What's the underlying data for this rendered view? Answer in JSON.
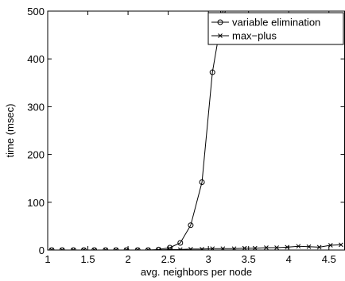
{
  "chart_data": {
    "type": "line",
    "title": "",
    "xlabel": "avg. neighbors per node",
    "ylabel": "time (msec)",
    "xlim": [
      1,
      4.7
    ],
    "ylim": [
      0,
      500
    ],
    "x_ticks": [
      1,
      1.5,
      2,
      2.5,
      3,
      3.5,
      4,
      4.5
    ],
    "x_tick_labels": [
      "1",
      "1.5",
      "2",
      "2.5",
      "3",
      "3.5",
      "4",
      "4.5"
    ],
    "y_ticks": [
      0,
      100,
      200,
      300,
      400,
      500
    ],
    "y_tick_labels": [
      "0",
      "100",
      "200",
      "300",
      "400",
      "500"
    ],
    "grid": false,
    "legend_position": "top-right",
    "series": [
      {
        "name": "variable elimination",
        "marker": "circle",
        "x": [
          1.05,
          1.18,
          1.32,
          1.45,
          1.58,
          1.72,
          1.85,
          1.98,
          2.12,
          2.25,
          2.38,
          2.52,
          2.65,
          2.78,
          2.92,
          3.05,
          3.18
        ],
        "y": [
          0,
          0,
          0,
          0,
          0,
          0,
          0,
          0,
          0,
          0,
          1,
          5,
          15,
          52,
          142,
          372,
          500
        ]
      },
      {
        "name": "max−plus",
        "marker": "x",
        "x": [
          1.05,
          1.18,
          1.32,
          1.45,
          1.58,
          1.72,
          1.85,
          1.98,
          2.12,
          2.25,
          2.38,
          2.52,
          2.65,
          2.78,
          2.92,
          3.05,
          3.18,
          3.32,
          3.45,
          3.58,
          3.72,
          3.85,
          3.98,
          4.12,
          4.25,
          4.38,
          4.52,
          4.65
        ],
        "y": [
          0,
          0,
          0,
          0,
          0,
          0,
          0,
          0,
          0,
          0,
          0,
          1,
          1,
          2,
          2,
          3,
          3,
          3,
          4,
          4,
          5,
          5,
          6,
          8,
          7,
          6,
          10,
          11
        ]
      }
    ]
  }
}
